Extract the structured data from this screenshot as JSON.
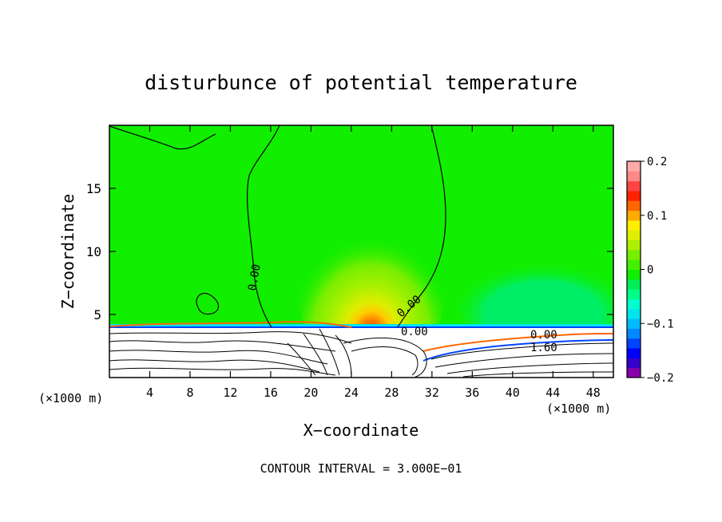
{
  "chart_data": {
    "type": "heatmap",
    "title": "disturbunce of potential temperature",
    "xlabel": "X−coordinate",
    "ylabel": "Z−coordinate",
    "x_unit_left": "(×1000 m)",
    "x_unit_right": "(×1000 m)",
    "footer": "CONTOUR INTERVAL = 3.000E−01",
    "xlim": [
      0,
      50
    ],
    "ylim": [
      0,
      20
    ],
    "x_ticks": [
      4,
      8,
      12,
      16,
      20,
      24,
      28,
      32,
      36,
      40,
      44,
      48
    ],
    "x_tick_labels": [
      "4",
      "8",
      "12",
      "16",
      "20",
      "24",
      "28",
      "32",
      "36",
      "40",
      "44",
      "48"
    ],
    "y_ticks": [
      5,
      10,
      15
    ],
    "y_tick_labels": [
      "5",
      "10",
      "15"
    ],
    "colorbar": {
      "range": [
        -0.2,
        0.2
      ],
      "ticks": [
        0.2,
        0.1,
        0,
        -0.1,
        -0.2
      ],
      "tick_labels": [
        "0.2",
        "0.1",
        "0",
        "−0.1",
        "−0.2"
      ],
      "colors": [
        "#8800aa",
        "#3300cc",
        "#0000ff",
        "#0044ff",
        "#0088ff",
        "#00bbff",
        "#00e5ee",
        "#00ffcc",
        "#00ff88",
        "#00ee55",
        "#11ee00",
        "#44f000",
        "#77ee00",
        "#aaf000",
        "#ddee00",
        "#ffee00",
        "#ffaa00",
        "#ff6600",
        "#ff2200",
        "#ff4444",
        "#ff8888",
        "#ffaaaa"
      ]
    },
    "fields": {
      "background": "#11ee00",
      "warm_anomaly_center": [
        26.5,
        4.5
      ],
      "cool_anomaly_center": [
        44,
        6
      ]
    },
    "contour_labels": [
      {
        "text": "0.00",
        "x": 14.5,
        "z": 7.0
      },
      {
        "text": "0.00",
        "x": 29.5,
        "z": 5.5
      },
      {
        "text": "0.00",
        "x": 30.0,
        "z": 3.5
      },
      {
        "text": "0.00",
        "x": 43.5,
        "z": 3.5
      },
      {
        "text": "1.60",
        "x": 43.5,
        "z": 2.5
      }
    ]
  }
}
